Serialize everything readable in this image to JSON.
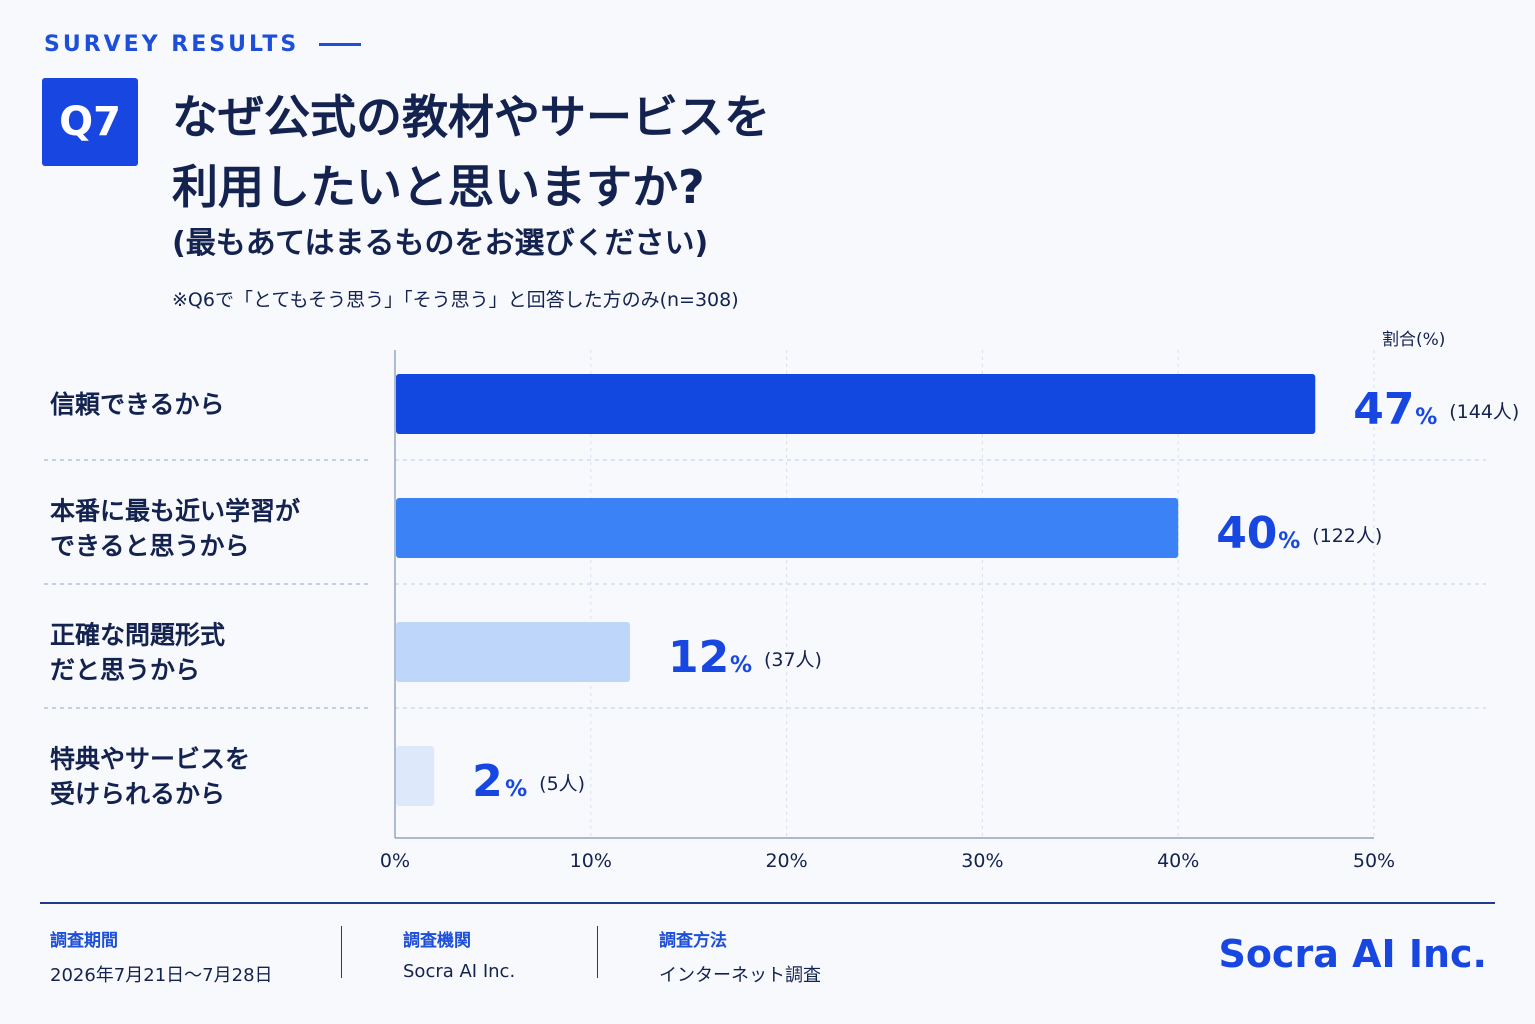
{
  "header": {
    "eyebrow": "SURVEY RESULTS",
    "badge": "Q7",
    "title_line1": "なぜ公式の教材やサービスを",
    "title_line2": "利用したいと思いますか?",
    "subtitle": "(最もあてはまるものをお選びください)",
    "note": "※Q6で「とてもそう思う」「そう思う」と回答した方のみ(n=308)",
    "unit_label": "割合(%)"
  },
  "chart_data": {
    "type": "bar",
    "orientation": "horizontal",
    "categories": [
      [
        "信頼できるから"
      ],
      [
        "本番に最も近い学習が",
        "できると思うから"
      ],
      [
        "正確な問題形式",
        "だと思うから"
      ],
      [
        "特典やサービスを",
        "受けられるから"
      ]
    ],
    "values": [
      47,
      40,
      12,
      2
    ],
    "value_labels": [
      "47",
      "40",
      "12",
      "2"
    ],
    "value_suffix": "%",
    "counts": [
      "(144人)",
      "(122人)",
      "(37人)",
      "(5人)"
    ],
    "bar_colors": [
      "#1247e0",
      "#3b82f6",
      "#bfd6fb",
      "#dde8fb"
    ],
    "xlim": [
      0,
      50
    ],
    "x_ticks": [
      0,
      10,
      20,
      30,
      40,
      50
    ],
    "x_tick_labels": [
      "0%",
      "10%",
      "20%",
      "30%",
      "40%",
      "50%"
    ],
    "grid": true
  },
  "footer": {
    "period_label": "調査期間",
    "period_value": "2026年7月21日〜7月28日",
    "org_label": "調査機関",
    "org_value": "Socra AI Inc.",
    "method_label": "調査方法",
    "method_value": "インターネット調査",
    "brand": "Socra AI Inc."
  }
}
